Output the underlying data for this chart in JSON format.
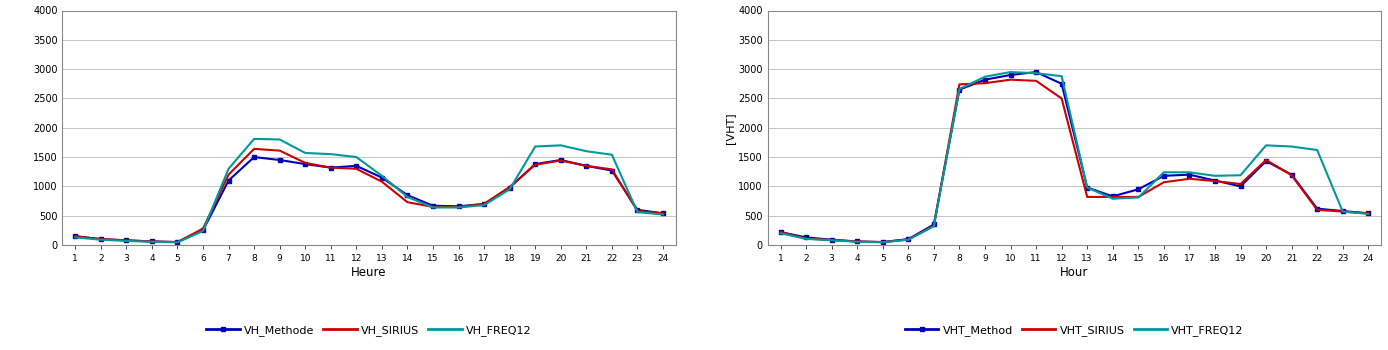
{
  "hours": [
    1,
    2,
    3,
    4,
    5,
    6,
    7,
    8,
    9,
    10,
    11,
    12,
    13,
    14,
    15,
    16,
    17,
    18,
    19,
    20,
    21,
    22,
    23,
    24
  ],
  "left_methode": [
    150,
    100,
    80,
    60,
    50,
    250,
    1100,
    1500,
    1450,
    1380,
    1320,
    1350,
    1150,
    850,
    670,
    660,
    700,
    980,
    1380,
    1450,
    1350,
    1270,
    600,
    540
  ],
  "left_sirius": [
    150,
    100,
    80,
    60,
    50,
    280,
    1200,
    1640,
    1610,
    1400,
    1320,
    1300,
    1080,
    730,
    650,
    650,
    700,
    990,
    1370,
    1440,
    1350,
    1290,
    580,
    540
  ],
  "left_freq12": [
    130,
    90,
    70,
    55,
    45,
    240,
    1300,
    1810,
    1800,
    1570,
    1550,
    1500,
    1180,
    820,
    640,
    640,
    680,
    950,
    1680,
    1700,
    1600,
    1540,
    560,
    520
  ],
  "right_method": [
    220,
    130,
    90,
    60,
    50,
    100,
    350,
    2650,
    2820,
    2900,
    2950,
    2750,
    980,
    830,
    950,
    1180,
    1200,
    1100,
    1000,
    1430,
    1200,
    620,
    580,
    540
  ],
  "right_sirius": [
    220,
    110,
    85,
    60,
    50,
    95,
    330,
    2740,
    2760,
    2820,
    2800,
    2500,
    820,
    820,
    820,
    1070,
    1130,
    1090,
    1040,
    1450,
    1190,
    600,
    570,
    540
  ],
  "right_freq12": [
    200,
    105,
    80,
    55,
    45,
    90,
    320,
    2660,
    2870,
    2950,
    2930,
    2880,
    980,
    790,
    810,
    1240,
    1240,
    1180,
    1190,
    1700,
    1680,
    1620,
    570,
    530
  ],
  "left_xlabel": "Heure",
  "right_xlabel": "Hour",
  "right_ylabel": "[VHT]",
  "ylim": [
    0,
    4000
  ],
  "yticks": [
    0,
    500,
    1000,
    1500,
    2000,
    2500,
    3000,
    3500,
    4000
  ],
  "left_legend": [
    "VH_Methode",
    "VH_SIRIUS",
    "VH_FREQ12"
  ],
  "right_legend": [
    "VHT_Method",
    "VHT_SIRIUS",
    "VHT_FREQ12"
  ],
  "color_methode": "#0000bb",
  "color_sirius": "#cc0000",
  "color_freq12": "#009999",
  "bg_color": "#ffffff",
  "grid_color": "#bbbbbb",
  "spine_color": "#888888"
}
